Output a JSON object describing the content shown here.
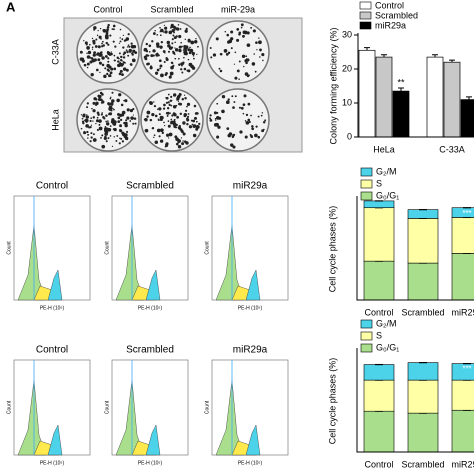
{
  "panel_label": "A",
  "colony_assay": {
    "column_labels": [
      "Control",
      "Scrambled",
      "miR-29a"
    ],
    "row_labels": [
      "C-33A",
      "HeLa"
    ]
  },
  "flow_panels": [
    {
      "titles": [
        "Control",
        "Scrambled",
        "miR29a"
      ],
      "x_label": "PE-H (10⁵)",
      "y_label": "Count"
    },
    {
      "titles": [
        "Control",
        "Scrambled",
        "miR29a"
      ],
      "x_label": "PE-H (10⁵)",
      "y_label": "Count"
    }
  ],
  "chart_data": [
    {
      "type": "bar",
      "y_label": "Colony forming efficiency (%)",
      "categories": [
        "HeLa",
        "C-33A"
      ],
      "series": [
        {
          "name": "Control",
          "color": "#ffffff",
          "values": [
            25.5,
            23.5
          ],
          "errors": [
            0.8,
            0.7
          ]
        },
        {
          "name": "Scrambled",
          "color": "#c8c8c8",
          "values": [
            23.5,
            22
          ],
          "errors": [
            0.7,
            0.6
          ]
        },
        {
          "name": "miR29a",
          "color": "#000000",
          "values": [
            13.5,
            11
          ],
          "errors": [
            0.9,
            0.8
          ]
        }
      ],
      "ylim": [
        0,
        30
      ],
      "yticks": [
        0,
        10,
        20,
        30
      ],
      "annotations": [
        "**"
      ]
    },
    {
      "type": "stacked_bar",
      "y_label": "Cell cycle phases (%)",
      "categories": [
        "Control",
        "Scrambled",
        "miR29a"
      ],
      "series": [
        {
          "name": "G₀/G₁",
          "color": "#a9df8c",
          "values": [
            40,
            38,
            48
          ]
        },
        {
          "name": "S",
          "color": "#ffffa6",
          "values": [
            55,
            46,
            37
          ]
        },
        {
          "name": "G₂/M",
          "color": "#4cd3ea",
          "values": [
            7,
            9,
            10
          ]
        }
      ],
      "ylim": [
        0,
        105
      ],
      "annotations": [
        "***"
      ]
    },
    {
      "type": "stacked_bar",
      "y_label": "Cell cycle phases (%)",
      "categories": [
        "Control",
        "Scrambled",
        "miR29a"
      ],
      "series": [
        {
          "name": "G₀/G₁",
          "color": "#a9df8c",
          "values": [
            42,
            40,
            43
          ]
        },
        {
          "name": "S",
          "color": "#ffffa6",
          "values": [
            32,
            34,
            31
          ]
        },
        {
          "name": "G₂/M",
          "color": "#4cd3ea",
          "values": [
            16,
            18,
            17
          ]
        }
      ],
      "ylim": [
        0,
        105
      ],
      "annotations": [
        "***"
      ]
    }
  ]
}
